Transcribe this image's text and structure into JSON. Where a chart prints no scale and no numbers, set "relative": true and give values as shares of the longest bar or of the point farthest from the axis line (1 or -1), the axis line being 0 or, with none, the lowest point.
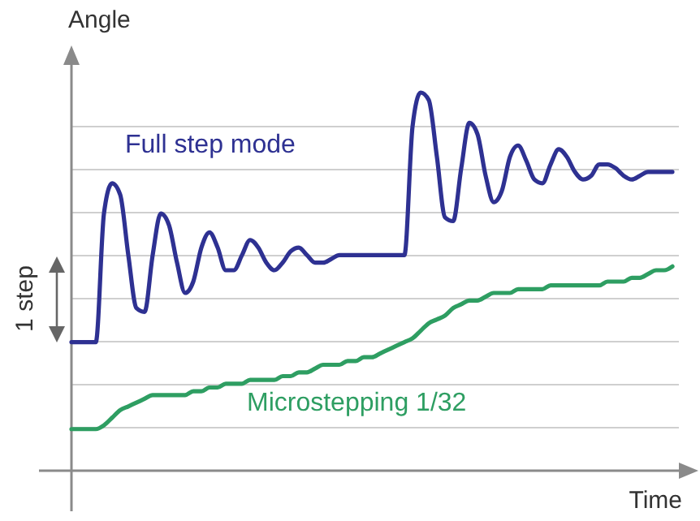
{
  "chart_data": {
    "type": "line",
    "xlabel": "Time",
    "ylabel": "Angle",
    "relative": true,
    "grid": "y",
    "legend": false,
    "annotations": [
      "1 step"
    ],
    "categories": [
      null,
      null,
      null,
      null,
      null,
      null,
      null,
      null,
      null,
      null,
      null,
      null,
      null,
      null,
      null,
      null,
      null,
      null,
      null,
      null,
      null,
      null,
      null,
      null,
      null,
      null,
      null,
      null,
      null,
      null,
      null,
      null,
      null,
      null,
      null,
      null,
      null,
      null,
      null,
      null,
      null,
      null,
      null,
      null,
      null,
      null,
      null,
      null,
      null,
      null,
      null,
      null,
      null,
      null,
      null,
      null,
      null,
      null,
      null,
      null,
      null,
      null,
      null,
      null,
      null,
      null,
      null,
      null,
      null,
      null,
      null,
      null,
      null,
      null,
      null
    ],
    "series": [
      {
        "name": "Full step mode",
        "color": "#2e3192",
        "values": [
          0.34,
          0.34,
          0.34,
          0.34,
          0.68,
          0.76,
          0.73,
          0.57,
          0.43,
          0.42,
          0.57,
          0.68,
          0.65,
          0.55,
          0.47,
          0.5,
          0.59,
          0.63,
          0.59,
          0.53,
          0.53,
          0.57,
          0.61,
          0.59,
          0.55,
          0.53,
          0.55,
          0.58,
          0.59,
          0.57,
          0.55,
          0.55,
          0.56,
          0.57,
          0.57,
          0.57,
          0.57,
          0.57,
          0.57,
          0.57,
          0.57,
          0.57,
          0.91,
          1,
          0.98,
          0.83,
          0.67,
          0.66,
          0.8,
          0.92,
          0.89,
          0.78,
          0.71,
          0.74,
          0.83,
          0.86,
          0.82,
          0.77,
          0.76,
          0.81,
          0.85,
          0.83,
          0.79,
          0.77,
          0.78,
          0.81,
          0.81,
          0.8,
          0.78,
          0.77,
          0.78,
          0.79,
          0.79,
          0.79,
          0.79
        ]
      },
      {
        "name": "Microstepping 1/32",
        "color": "#2e9e62",
        "values": [
          0.11,
          0.11,
          0.11,
          0.11,
          0.12,
          0.14,
          0.16,
          0.17,
          0.18,
          0.19,
          0.2,
          0.2,
          0.2,
          0.2,
          0.2,
          0.21,
          0.21,
          0.22,
          0.22,
          0.23,
          0.23,
          0.23,
          0.24,
          0.24,
          0.24,
          0.24,
          0.25,
          0.25,
          0.26,
          0.26,
          0.27,
          0.28,
          0.28,
          0.28,
          0.29,
          0.29,
          0.3,
          0.3,
          0.31,
          0.32,
          0.33,
          0.34,
          0.35,
          0.37,
          0.39,
          0.4,
          0.41,
          0.43,
          0.44,
          0.45,
          0.45,
          0.46,
          0.47,
          0.47,
          0.47,
          0.48,
          0.48,
          0.48,
          0.48,
          0.49,
          0.49,
          0.49,
          0.49,
          0.49,
          0.49,
          0.49,
          0.5,
          0.5,
          0.5,
          0.51,
          0.51,
          0.52,
          0.53,
          0.53,
          0.54
        ]
      }
    ]
  }
}
